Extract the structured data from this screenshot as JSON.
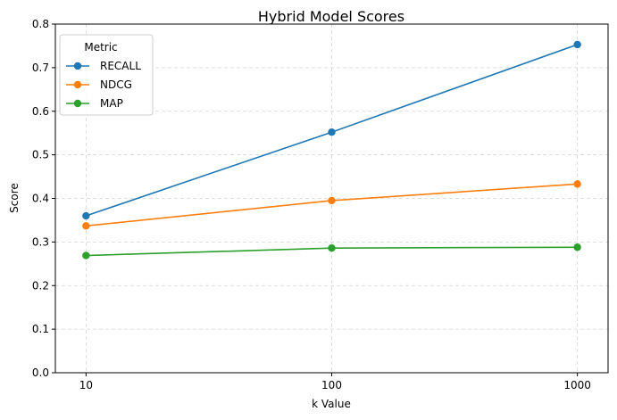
{
  "chart_data": {
    "type": "line",
    "title": "Hybrid Model Scores",
    "xlabel": "k Value",
    "ylabel": "Score",
    "x": [
      10,
      100,
      1000
    ],
    "x_tick_labels": [
      "10",
      "100",
      "1000"
    ],
    "ylim": [
      0,
      0.8
    ],
    "y_ticks": [
      0.0,
      0.1,
      0.2,
      0.3,
      0.4,
      0.5,
      0.6,
      0.7,
      0.8
    ],
    "y_tick_labels": [
      "0.0",
      "0.1",
      "0.2",
      "0.3",
      "0.4",
      "0.5",
      "0.6",
      "0.7",
      "0.8"
    ],
    "grid": true,
    "legend": {
      "title": "Metric",
      "placement": "top-left"
    },
    "series": [
      {
        "name": "RECALL",
        "color": "#1f77b4",
        "values": [
          0.36,
          0.552,
          0.753
        ]
      },
      {
        "name": "NDCG",
        "color": "#ff7f0e",
        "values": [
          0.337,
          0.395,
          0.433
        ]
      },
      {
        "name": "MAP",
        "color": "#2ca02c",
        "values": [
          0.269,
          0.286,
          0.288
        ]
      }
    ]
  }
}
